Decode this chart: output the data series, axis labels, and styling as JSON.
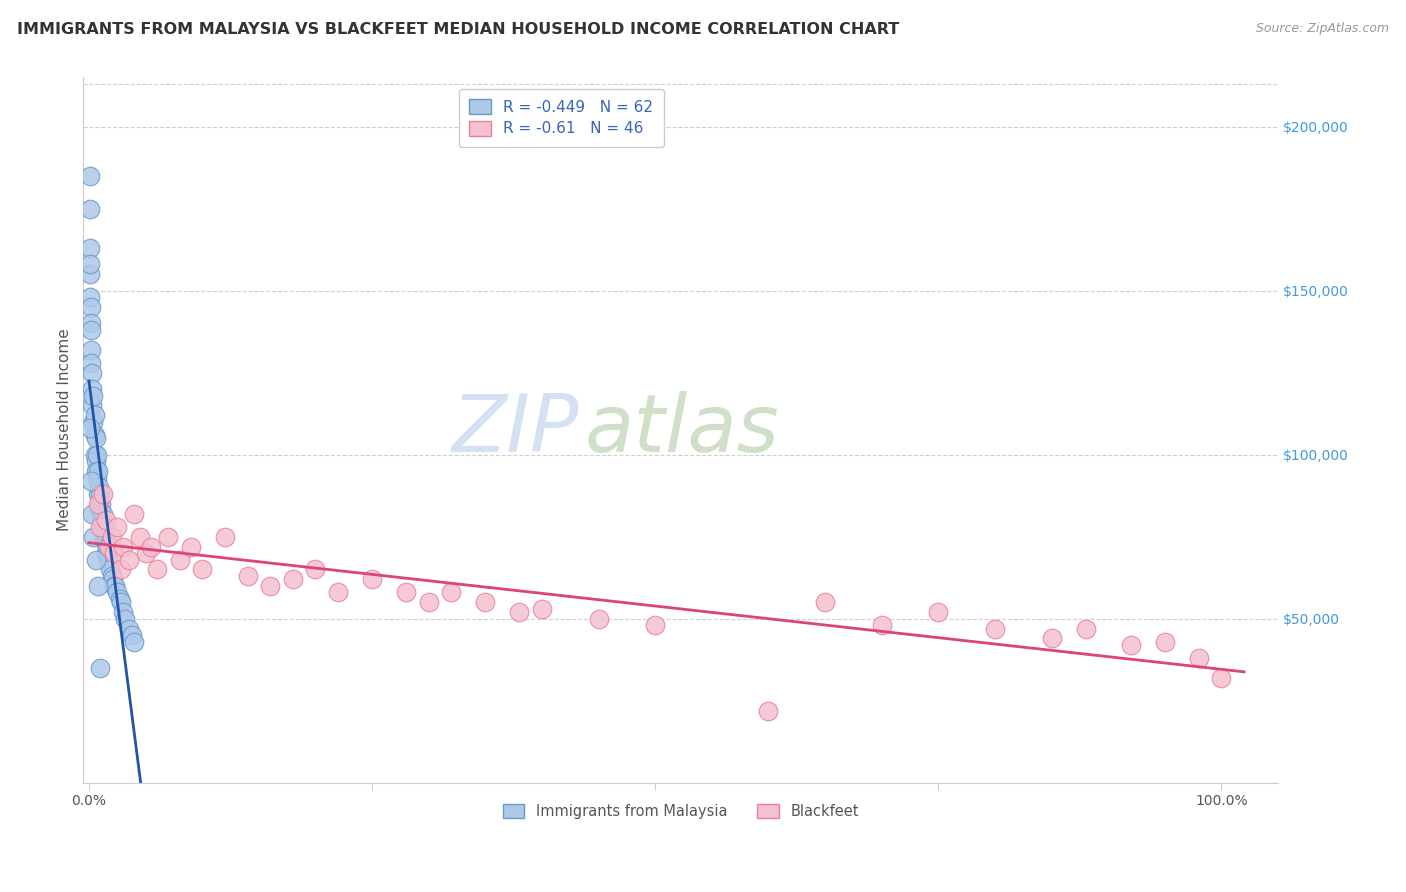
{
  "title": "IMMIGRANTS FROM MALAYSIA VS BLACKFEET MEDIAN HOUSEHOLD INCOME CORRELATION CHART",
  "source": "Source: ZipAtlas.com",
  "ylabel": "Median Household Income",
  "watermark_zip": "ZIP",
  "watermark_atlas": "atlas",
  "blue_label": "Immigrants from Malaysia",
  "pink_label": "Blackfeet",
  "blue_R": -0.449,
  "blue_N": 62,
  "pink_R": -0.61,
  "pink_N": 46,
  "blue_color": "#aec8e8",
  "blue_edge": "#6699cc",
  "pink_color": "#f5c0d0",
  "pink_edge": "#e88099",
  "blue_line_color": "#2255aa",
  "pink_line_color": "#dd4477",
  "ylim": [
    0,
    215000
  ],
  "xlim": [
    -0.005,
    1.05
  ],
  "blue_x": [
    0.0008,
    0.0009,
    0.001,
    0.001,
    0.0012,
    0.0012,
    0.0015,
    0.0015,
    0.002,
    0.002,
    0.002,
    0.003,
    0.003,
    0.003,
    0.004,
    0.004,
    0.005,
    0.005,
    0.005,
    0.006,
    0.006,
    0.006,
    0.007,
    0.007,
    0.008,
    0.008,
    0.009,
    0.009,
    0.01,
    0.01,
    0.011,
    0.011,
    0.012,
    0.012,
    0.013,
    0.013,
    0.014,
    0.015,
    0.015,
    0.016,
    0.017,
    0.018,
    0.019,
    0.02,
    0.021,
    0.022,
    0.023,
    0.025,
    0.027,
    0.028,
    0.03,
    0.032,
    0.035,
    0.038,
    0.04,
    0.001,
    0.002,
    0.003,
    0.004,
    0.006,
    0.008,
    0.01
  ],
  "blue_y": [
    185000,
    163000,
    175000,
    155000,
    158000,
    148000,
    145000,
    140000,
    138000,
    132000,
    128000,
    125000,
    120000,
    115000,
    118000,
    110000,
    112000,
    106000,
    100000,
    105000,
    98000,
    95000,
    100000,
    93000,
    95000,
    88000,
    90000,
    85000,
    88000,
    83000,
    85000,
    80000,
    82000,
    78000,
    78000,
    74000,
    75000,
    73000,
    70000,
    72000,
    68000,
    67000,
    65000,
    63000,
    62000,
    60000,
    60000,
    58000,
    56000,
    55000,
    52000,
    50000,
    47000,
    45000,
    43000,
    108000,
    92000,
    82000,
    75000,
    68000,
    60000,
    35000
  ],
  "pink_x": [
    0.008,
    0.01,
    0.012,
    0.015,
    0.018,
    0.02,
    0.022,
    0.025,
    0.028,
    0.03,
    0.035,
    0.04,
    0.045,
    0.05,
    0.055,
    0.06,
    0.07,
    0.08,
    0.09,
    0.1,
    0.12,
    0.14,
    0.16,
    0.18,
    0.2,
    0.22,
    0.25,
    0.28,
    0.3,
    0.32,
    0.35,
    0.38,
    0.4,
    0.45,
    0.5,
    0.6,
    0.65,
    0.7,
    0.75,
    0.8,
    0.85,
    0.88,
    0.92,
    0.95,
    0.98,
    1.0
  ],
  "pink_y": [
    85000,
    78000,
    88000,
    80000,
    72000,
    75000,
    70000,
    78000,
    65000,
    72000,
    68000,
    82000,
    75000,
    70000,
    72000,
    65000,
    75000,
    68000,
    72000,
    65000,
    75000,
    63000,
    60000,
    62000,
    65000,
    58000,
    62000,
    58000,
    55000,
    58000,
    55000,
    52000,
    53000,
    50000,
    48000,
    22000,
    55000,
    48000,
    52000,
    47000,
    44000,
    47000,
    42000,
    43000,
    38000,
    32000
  ]
}
